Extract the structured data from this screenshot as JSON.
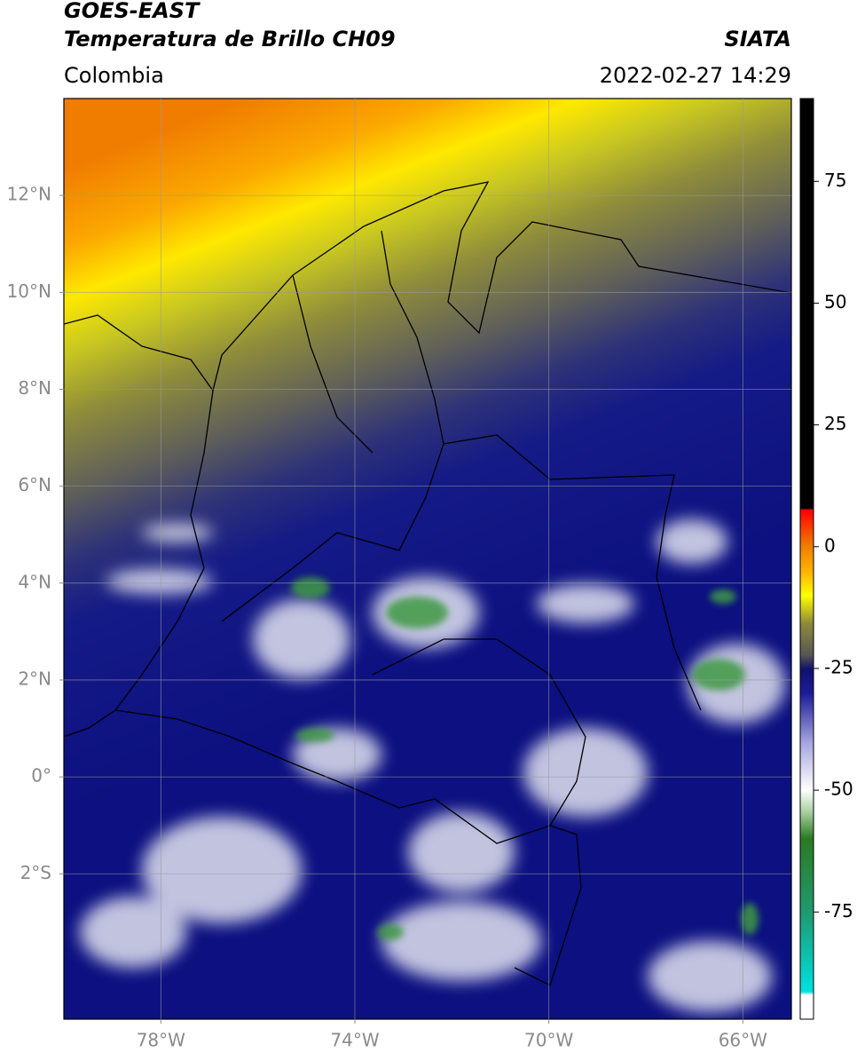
{
  "header": {
    "title_line1": "GOES-EAST",
    "title_line2": "Temperatura de Brillo CH09",
    "source": "SIATA",
    "region": "Colombia",
    "datetime": "2022-02-27 14:29"
  },
  "map": {
    "lonlim": [
      -80,
      -65
    ],
    "latlim": [
      -5,
      14
    ],
    "grid": true,
    "lat_ticks": [
      {
        "value": 12,
        "label": "12°N"
      },
      {
        "value": 10,
        "label": "10°N"
      },
      {
        "value": 8,
        "label": "8°N"
      },
      {
        "value": 6,
        "label": "6°N"
      },
      {
        "value": 4,
        "label": "4°N"
      },
      {
        "value": 2,
        "label": "2°N"
      },
      {
        "value": 0,
        "label": "0°"
      },
      {
        "value": -2,
        "label": "2°S"
      }
    ],
    "lon_ticks": [
      {
        "value": -78,
        "label": "78°W"
      },
      {
        "value": -74,
        "label": "74°W"
      },
      {
        "value": -70,
        "label": "70°W"
      },
      {
        "value": -66,
        "label": "66°W"
      }
    ]
  },
  "colorbar": {
    "lim": [
      -97,
      92
    ],
    "ticks": [
      -75,
      -50,
      -25,
      0,
      25,
      50,
      75
    ]
  }
}
